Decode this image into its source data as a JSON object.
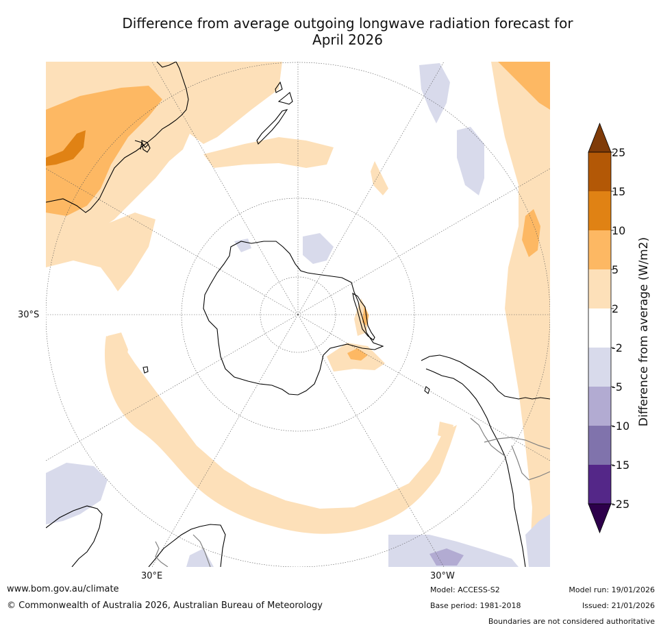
{
  "title": {
    "line1": "Difference from average outgoing longwave radiation forecast for",
    "line2": "April 2026"
  },
  "map": {
    "labels": {
      "lat": "30°S",
      "lon_east": "30°E",
      "lon_west": "30°W"
    },
    "colors": {
      "anomaly_2_5": "#fde0b9",
      "anomaly_5_10": "#fdb863",
      "anomaly_10_15": "#e08214",
      "anomaly_neg2_neg5": "#d8daeb",
      "anomaly_neg5_neg10": "#b2abd2",
      "coastline": "#000000",
      "border": "#808080",
      "graticule": "#555555"
    }
  },
  "legend": {
    "title": "Difference from average (W/m2)",
    "ticks": [
      "25",
      "15",
      "10",
      "5",
      "2",
      "-2",
      "-5",
      "-10",
      "-15",
      "-25"
    ],
    "colors": [
      "#7f3b08",
      "#b35806",
      "#e08214",
      "#fdb863",
      "#fde0b9",
      "#ffffff",
      "#d8daeb",
      "#b2abd2",
      "#8073ac",
      "#542788",
      "#2d004b"
    ]
  },
  "footer": {
    "website": "www.bom.gov.au/climate",
    "copyright": "© Commonwealth of Australia 2026, Australian Bureau of Meteorology",
    "model": "Model: ACCESS-S2",
    "base_period": "Base period: 1981-2018",
    "model_run": "Model run: 19/01/2026",
    "issued": "Issued: 21/01/2026",
    "disclaimer": "Boundaries are not considered authoritative"
  }
}
